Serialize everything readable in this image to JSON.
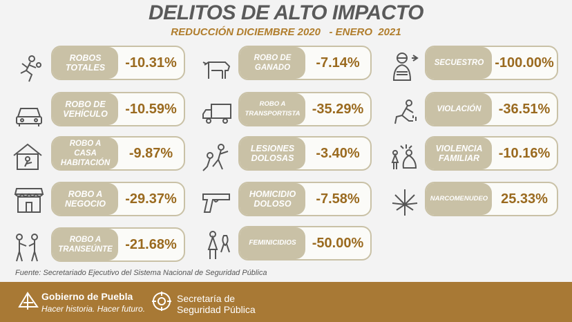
{
  "title": "DELITOS DE ALTO IMPACTO",
  "subtitle": "REDUCCIÓN DICIEMBRE 2020   - ENERO  2021",
  "crimes": [
    {
      "label": "ROBOS\nTOTALES",
      "value": "-10.31%",
      "icon": "running-thief-icon"
    },
    {
      "label": "ROBO DE\nVEHÍCULO",
      "value": "-10.59%",
      "icon": "car-icon"
    },
    {
      "label": "ROBO A\nCASA\nHABITACIÓN",
      "value": "-9.87%",
      "icon": "house-theft-icon"
    },
    {
      "label": "ROBO A\nNEGOCIO",
      "value": "-29.37%",
      "icon": "store-icon"
    },
    {
      "label": "ROBO A\nTRANSEÚNTE",
      "value": "-21.68%",
      "icon": "pedestrian-robbery-icon"
    },
    {
      "label": "ROBO DE\nGANADO",
      "value": "-7.14%",
      "icon": "cow-icon"
    },
    {
      "label": "ROBO A\nTRANSPORTISTA",
      "value": "-35.29%",
      "icon": "truck-icon"
    },
    {
      "label": "LESIONES\nDOLOSAS",
      "value": "-3.40%",
      "icon": "fight-icon"
    },
    {
      "label": "HOMICIDIO\nDOLOSO",
      "value": "-7.58%",
      "icon": "gun-icon"
    },
    {
      "label": "FEMINICIDIOS",
      "value": "-50.00%",
      "icon": "woman-ribbon-icon"
    },
    {
      "label": "SECUESTRO",
      "value": "-100.00%",
      "icon": "kidnapped-person-icon"
    },
    {
      "label": "VIOLACIÓN",
      "value": "-36.51%",
      "icon": "kneeling-victim-icon"
    },
    {
      "label": "VIOLENCIA\nFAMILIAR",
      "value": "-10.16%",
      "icon": "domestic-violence-icon"
    },
    {
      "label": "NARCOMENUDEO",
      "value": "25.33%",
      "icon": "cannabis-leaf-icon"
    }
  ],
  "source": "Fuente: Secretariado Ejecutivo del Sistema Nacional de Seguridad Pública",
  "footer": {
    "gov_name": "Gobierno de Puebla",
    "gov_tagline": "Hacer historia. Hacer futuro.",
    "sec_line1": "Secretaría de",
    "sec_line2": "Seguridad Pública"
  },
  "colors": {
    "accent": "#b07d2c",
    "label_bg": "#c9c1a6",
    "footer": "#a87935",
    "title": "#5a5a5a"
  }
}
